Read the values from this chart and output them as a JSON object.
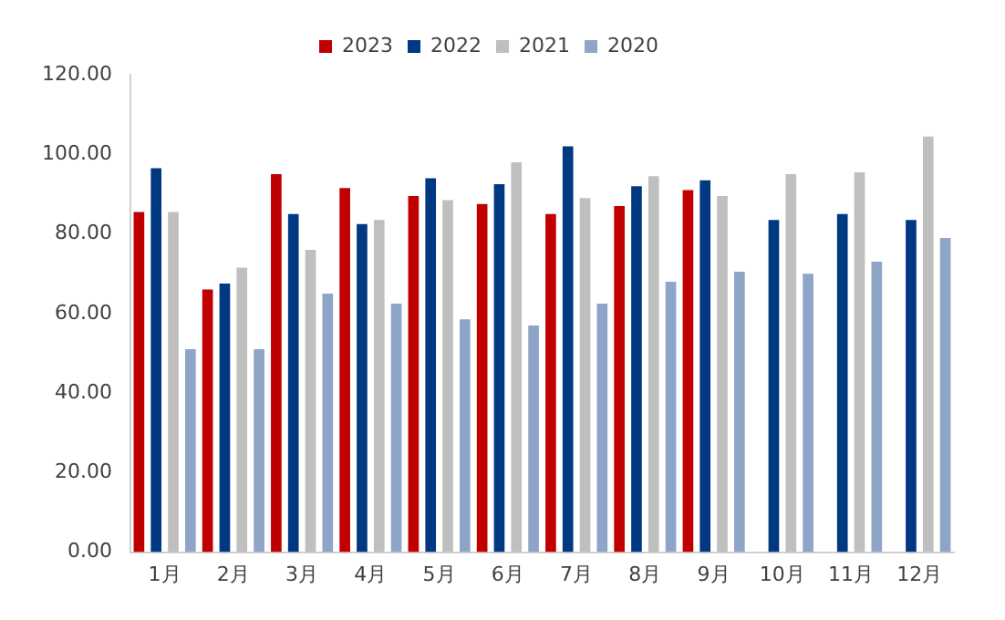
{
  "chart_data": {
    "type": "bar",
    "categories": [
      "1月",
      "2月",
      "3月",
      "4月",
      "5月",
      "6月",
      "7月",
      "8月",
      "9月",
      "10月",
      "11月",
      "12月"
    ],
    "series": [
      {
        "name": "2023",
        "color": "#c00000",
        "values": [
          85.5,
          66,
          95,
          91.5,
          89.5,
          87.5,
          85,
          87,
          91,
          null,
          null,
          null
        ]
      },
      {
        "name": "2022",
        "color": "#003882",
        "values": [
          96.5,
          67.5,
          85,
          82.5,
          94,
          92.5,
          102,
          92,
          93.5,
          83.5,
          85,
          83.5
        ]
      },
      {
        "name": "2021",
        "color": "#bfbfbf",
        "values": [
          85.5,
          71.5,
          76,
          83.5,
          88.5,
          98,
          89,
          94.5,
          89.5,
          95,
          95.5,
          104.5
        ]
      },
      {
        "name": "2020",
        "color": "#8ea5c8",
        "values": [
          51,
          51,
          65,
          62.5,
          58.5,
          57,
          62.5,
          68,
          70.5,
          70,
          73,
          79
        ]
      }
    ],
    "ylim": [
      0,
      120
    ],
    "yticks": [
      {
        "value": 0,
        "label": "0.00"
      },
      {
        "value": 20,
        "label": "20.00"
      },
      {
        "value": 40,
        "label": "40.00"
      },
      {
        "value": 60,
        "label": "60.00"
      },
      {
        "value": 80,
        "label": "80.00"
      },
      {
        "value": 100,
        "label": "100.00"
      },
      {
        "value": 120,
        "label": "120.00"
      }
    ],
    "grid": false,
    "legend": "top"
  }
}
